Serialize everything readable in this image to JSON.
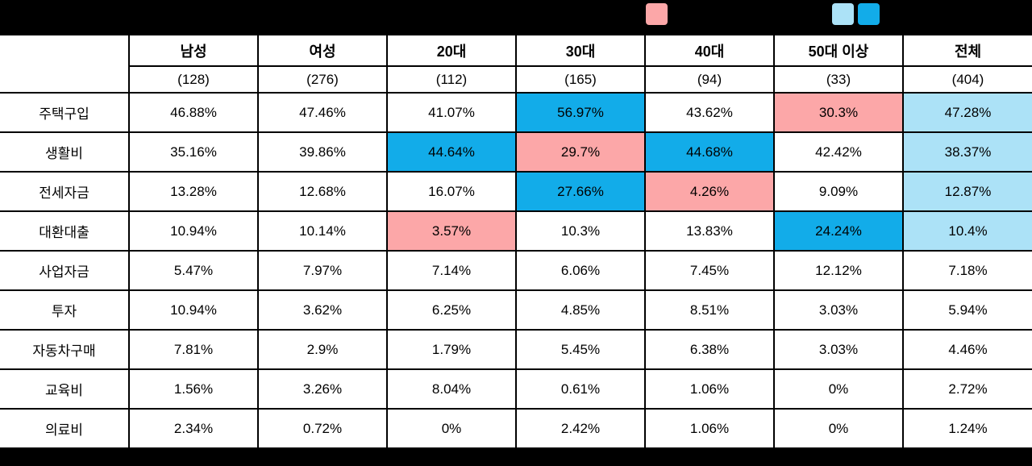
{
  "colors": {
    "blue": "#12ACE9",
    "pink": "#FCA7A8",
    "lightblue": "#ACE2F7"
  },
  "legend": {
    "swatches": [
      {
        "name": "pink-swatch",
        "color_key": "pink"
      },
      {
        "name": "lightblue-swatch",
        "color_key": "lightblue"
      },
      {
        "name": "blue-swatch",
        "color_key": "blue"
      }
    ]
  },
  "chart_data": {
    "type": "table",
    "title": "",
    "columns": [
      {
        "label": "남성",
        "count": "(128)"
      },
      {
        "label": "여성",
        "count": "(276)"
      },
      {
        "label": "20대",
        "count": "(112)"
      },
      {
        "label": "30대",
        "count": "(165)"
      },
      {
        "label": "40대",
        "count": "(94)"
      },
      {
        "label": "50대 이상",
        "count": "(33)"
      },
      {
        "label": "전체",
        "count": "(404)"
      }
    ],
    "rows": [
      {
        "label": "주택구입",
        "cells": [
          {
            "text": "46.88%",
            "bg": "none"
          },
          {
            "text": "47.46%",
            "bg": "none"
          },
          {
            "text": "41.07%",
            "bg": "none"
          },
          {
            "text": "56.97%",
            "bg": "blue"
          },
          {
            "text": "43.62%",
            "bg": "none"
          },
          {
            "text": "30.3%",
            "bg": "pink"
          },
          {
            "text": "47.28%",
            "bg": "lightblue"
          }
        ]
      },
      {
        "label": "생활비",
        "cells": [
          {
            "text": "35.16%",
            "bg": "none"
          },
          {
            "text": "39.86%",
            "bg": "none"
          },
          {
            "text": "44.64%",
            "bg": "blue"
          },
          {
            "text": "29.7%",
            "bg": "pink"
          },
          {
            "text": "44.68%",
            "bg": "blue"
          },
          {
            "text": "42.42%",
            "bg": "none"
          },
          {
            "text": "38.37%",
            "bg": "lightblue"
          }
        ]
      },
      {
        "label": "전세자금",
        "cells": [
          {
            "text": "13.28%",
            "bg": "none"
          },
          {
            "text": "12.68%",
            "bg": "none"
          },
          {
            "text": "16.07%",
            "bg": "none"
          },
          {
            "text": "27.66%",
            "bg": "blue"
          },
          {
            "text": "4.26%",
            "bg": "pink"
          },
          {
            "text": "9.09%",
            "bg": "none"
          },
          {
            "text": "12.87%",
            "bg": "lightblue"
          }
        ]
      },
      {
        "label": "대환대출",
        "cells": [
          {
            "text": "10.94%",
            "bg": "none"
          },
          {
            "text": "10.14%",
            "bg": "none"
          },
          {
            "text": "3.57%",
            "bg": "pink"
          },
          {
            "text": "10.3%",
            "bg": "none"
          },
          {
            "text": "13.83%",
            "bg": "none"
          },
          {
            "text": "24.24%",
            "bg": "blue"
          },
          {
            "text": "10.4%",
            "bg": "lightblue"
          }
        ]
      },
      {
        "label": "사업자금",
        "cells": [
          {
            "text": "5.47%",
            "bg": "none"
          },
          {
            "text": "7.97%",
            "bg": "none"
          },
          {
            "text": "7.14%",
            "bg": "none"
          },
          {
            "text": "6.06%",
            "bg": "none"
          },
          {
            "text": "7.45%",
            "bg": "none"
          },
          {
            "text": "12.12%",
            "bg": "none"
          },
          {
            "text": "7.18%",
            "bg": "none"
          }
        ]
      },
      {
        "label": "투자",
        "cells": [
          {
            "text": "10.94%",
            "bg": "none"
          },
          {
            "text": "3.62%",
            "bg": "none"
          },
          {
            "text": "6.25%",
            "bg": "none"
          },
          {
            "text": "4.85%",
            "bg": "none"
          },
          {
            "text": "8.51%",
            "bg": "none"
          },
          {
            "text": "3.03%",
            "bg": "none"
          },
          {
            "text": "5.94%",
            "bg": "none"
          }
        ]
      },
      {
        "label": "자동차구매",
        "cells": [
          {
            "text": "7.81%",
            "bg": "none"
          },
          {
            "text": "2.9%",
            "bg": "none"
          },
          {
            "text": "1.79%",
            "bg": "none"
          },
          {
            "text": "5.45%",
            "bg": "none"
          },
          {
            "text": "6.38%",
            "bg": "none"
          },
          {
            "text": "3.03%",
            "bg": "none"
          },
          {
            "text": "4.46%",
            "bg": "none"
          }
        ]
      },
      {
        "label": "교육비",
        "cells": [
          {
            "text": "1.56%",
            "bg": "none"
          },
          {
            "text": "3.26%",
            "bg": "none"
          },
          {
            "text": "8.04%",
            "bg": "none"
          },
          {
            "text": "0.61%",
            "bg": "none"
          },
          {
            "text": "1.06%",
            "bg": "none"
          },
          {
            "text": "0%",
            "bg": "none"
          },
          {
            "text": "2.72%",
            "bg": "none"
          }
        ]
      },
      {
        "label": "의료비",
        "cells": [
          {
            "text": "2.34%",
            "bg": "none"
          },
          {
            "text": "0.72%",
            "bg": "none"
          },
          {
            "text": "0%",
            "bg": "none"
          },
          {
            "text": "2.42%",
            "bg": "none"
          },
          {
            "text": "1.06%",
            "bg": "none"
          },
          {
            "text": "0%",
            "bg": "none"
          },
          {
            "text": "1.24%",
            "bg": "none"
          }
        ]
      }
    ]
  }
}
